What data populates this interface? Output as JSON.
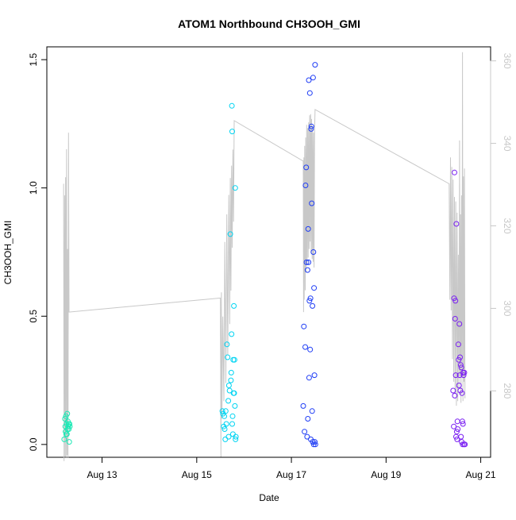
{
  "chart_data": {
    "type": "scatter",
    "title": "ATOM1 Northbound CH3OOH_GMI",
    "xlabel": "Date",
    "ylabel": "CH3OOH_GMI",
    "xlim": [
      "2016-08-11 20:00",
      "2016-08-21 05:00"
    ],
    "ylim": [
      -0.05,
      1.55
    ],
    "y2lim": [
      263.9,
      363.4
    ],
    "grid": false,
    "legend": "none",
    "x_ticks": [
      {
        "date": "2016-08-13",
        "label": "Aug 13"
      },
      {
        "date": "2016-08-15",
        "label": "Aug 15"
      },
      {
        "date": "2016-08-17",
        "label": "Aug 17"
      },
      {
        "date": "2016-08-19",
        "label": "Aug 19"
      },
      {
        "date": "2016-08-21",
        "label": "Aug 21"
      }
    ],
    "y_ticks": [
      {
        "value": 0.0,
        "label": "0.0"
      },
      {
        "value": 0.5,
        "label": "0.5"
      },
      {
        "value": 1.0,
        "label": "1.0"
      },
      {
        "value": 1.5,
        "label": "1.5"
      }
    ],
    "y2_ticks": [
      {
        "value": 280,
        "label": "280"
      },
      {
        "value": 300,
        "label": "300"
      },
      {
        "value": 320,
        "label": "320"
      },
      {
        "value": 340,
        "label": "340"
      },
      {
        "value": 360,
        "label": "360"
      }
    ],
    "colors": {
      "line": "#c8c8c8",
      "axis": "#000000",
      "y2_axis": "#c8c8c8",
      "flight1": "#1de9b6",
      "flight2": "#00d4f2",
      "flight3": "#1f3df5",
      "flight4": "#7a1ff2"
    },
    "series": [
      {
        "color": "#1de9b6",
        "points": [
          [
            "2016-08-12 04:50",
            0.02
          ],
          [
            "2016-08-12 05:10",
            0.1
          ],
          [
            "2016-08-12 05:20",
            0.07
          ],
          [
            "2016-08-12 05:30",
            0.05
          ],
          [
            "2016-08-12 05:40",
            0.11
          ],
          [
            "2016-08-12 05:50",
            0.04
          ],
          [
            "2016-08-12 06:00",
            0.08
          ],
          [
            "2016-08-12 06:10",
            0.04
          ],
          [
            "2016-08-12 06:20",
            0.12
          ],
          [
            "2016-08-12 06:30",
            0.06
          ],
          [
            "2016-08-12 06:40",
            0.09
          ],
          [
            "2016-08-12 06:50",
            0.07
          ],
          [
            "2016-08-12 07:00",
            0.08
          ],
          [
            "2016-08-12 07:10",
            0.06
          ],
          [
            "2016-08-12 07:20",
            0.01
          ],
          [
            "2016-08-12 07:30",
            0.08
          ],
          [
            "2016-08-12 07:40",
            0.07
          ]
        ]
      },
      {
        "color": "#00d4f2",
        "points": [
          [
            "2016-08-15 13:00",
            0.13
          ],
          [
            "2016-08-15 13:20",
            0.12
          ],
          [
            "2016-08-15 13:40",
            0.07
          ],
          [
            "2016-08-15 14:00",
            0.11
          ],
          [
            "2016-08-15 14:10",
            0.06
          ],
          [
            "2016-08-15 14:30",
            0.02
          ],
          [
            "2016-08-15 14:40",
            0.13
          ],
          [
            "2016-08-15 15:00",
            0.08
          ],
          [
            "2016-08-15 15:20",
            0.39
          ],
          [
            "2016-08-15 15:40",
            0.34
          ],
          [
            "2016-08-15 16:00",
            0.17
          ],
          [
            "2016-08-15 16:10",
            0.03
          ],
          [
            "2016-08-15 16:20",
            0.23
          ],
          [
            "2016-08-15 16:40",
            0.21
          ],
          [
            "2016-08-15 17:00",
            0.82
          ],
          [
            "2016-08-15 17:20",
            0.25
          ],
          [
            "2016-08-15 17:30",
            0.28
          ],
          [
            "2016-08-15 17:40",
            0.43
          ],
          [
            "2016-08-15 17:50",
            1.32
          ],
          [
            "2016-08-15 18:00",
            1.22
          ],
          [
            "2016-08-15 18:10",
            0.11
          ],
          [
            "2016-08-15 18:20",
            0.04
          ],
          [
            "2016-08-15 18:30",
            0.33
          ],
          [
            "2016-08-15 18:40",
            0.2
          ],
          [
            "2016-08-15 18:50",
            0.54
          ],
          [
            "2016-08-15 19:00",
            0.2
          ],
          [
            "2016-08-15 19:10",
            0.33
          ],
          [
            "2016-08-15 19:20",
            0.15
          ],
          [
            "2016-08-15 19:30",
            1.0
          ],
          [
            "2016-08-15 19:40",
            0.02
          ],
          [
            "2016-08-15 19:50",
            0.03
          ],
          [
            "2016-08-15 18:00",
            0.08
          ]
        ]
      },
      {
        "color": "#1f3df5",
        "points": [
          [
            "2016-08-17 06:00",
            0.15
          ],
          [
            "2016-08-17 06:20",
            0.46
          ],
          [
            "2016-08-17 06:40",
            0.05
          ],
          [
            "2016-08-17 07:00",
            0.38
          ],
          [
            "2016-08-17 07:10",
            1.01
          ],
          [
            "2016-08-17 07:30",
            1.08
          ],
          [
            "2016-08-17 07:40",
            0.71
          ],
          [
            "2016-08-17 08:00",
            0.03
          ],
          [
            "2016-08-17 08:10",
            0.68
          ],
          [
            "2016-08-17 08:20",
            0.1
          ],
          [
            "2016-08-17 08:30",
            0.84
          ],
          [
            "2016-08-17 08:40",
            0.71
          ],
          [
            "2016-08-17 08:50",
            1.42
          ],
          [
            "2016-08-17 09:00",
            0.26
          ],
          [
            "2016-08-17 09:10",
            0.56
          ],
          [
            "2016-08-17 09:20",
            1.37
          ],
          [
            "2016-08-17 09:30",
            0.37
          ],
          [
            "2016-08-17 09:40",
            0.57
          ],
          [
            "2016-08-17 09:50",
            0.02
          ],
          [
            "2016-08-17 10:00",
            1.23
          ],
          [
            "2016-08-17 10:10",
            1.24
          ],
          [
            "2016-08-17 10:20",
            0.94
          ],
          [
            "2016-08-17 10:30",
            0.13
          ],
          [
            "2016-08-17 10:40",
            0.54
          ],
          [
            "2016-08-17 10:50",
            0.01
          ],
          [
            "2016-08-17 11:00",
            1.43
          ],
          [
            "2016-08-17 11:10",
            0.75
          ],
          [
            "2016-08-17 11:20",
            0.0
          ],
          [
            "2016-08-17 11:30",
            0.61
          ],
          [
            "2016-08-17 11:40",
            0.27
          ],
          [
            "2016-08-17 11:50",
            0.01
          ],
          [
            "2016-08-17 12:00",
            1.48
          ],
          [
            "2016-08-17 12:10",
            0.0
          ]
        ]
      },
      {
        "color": "#7a1ff2",
        "points": [
          [
            "2016-08-20 10:00",
            0.21
          ],
          [
            "2016-08-20 10:20",
            0.07
          ],
          [
            "2016-08-20 10:30",
            0.57
          ],
          [
            "2016-08-20 10:40",
            1.06
          ],
          [
            "2016-08-20 10:50",
            0.19
          ],
          [
            "2016-08-20 11:00",
            0.49
          ],
          [
            "2016-08-20 11:10",
            0.56
          ],
          [
            "2016-08-20 11:20",
            0.27
          ],
          [
            "2016-08-20 11:30",
            0.03
          ],
          [
            "2016-08-20 11:40",
            0.86
          ],
          [
            "2016-08-20 11:50",
            0.05
          ],
          [
            "2016-08-20 12:00",
            0.02
          ],
          [
            "2016-08-20 12:10",
            0.09
          ],
          [
            "2016-08-20 12:20",
            0.06
          ],
          [
            "2016-08-20 12:40",
            0.39
          ],
          [
            "2016-08-20 12:50",
            0.33
          ],
          [
            "2016-08-20 13:00",
            0.23
          ],
          [
            "2016-08-20 13:10",
            0.47
          ],
          [
            "2016-08-20 13:20",
            0.27
          ],
          [
            "2016-08-20 13:30",
            0.34
          ],
          [
            "2016-08-20 13:40",
            0.21
          ],
          [
            "2016-08-20 13:50",
            0.31
          ],
          [
            "2016-08-20 14:00",
            0.03
          ],
          [
            "2016-08-20 14:10",
            0.3
          ],
          [
            "2016-08-20 14:20",
            0.01
          ],
          [
            "2016-08-20 14:30",
            0.2
          ],
          [
            "2016-08-20 14:40",
            0.09
          ],
          [
            "2016-08-20 14:50",
            0.0
          ],
          [
            "2016-08-20 15:00",
            0.08
          ],
          [
            "2016-08-20 15:10",
            0.28
          ],
          [
            "2016-08-20 15:20",
            0.27
          ],
          [
            "2016-08-20 15:30",
            0.0
          ],
          [
            "2016-08-20 15:40",
            0.28
          ],
          [
            "2016-08-20 16:00",
            0.0
          ]
        ]
      }
    ],
    "line_series": {
      "axis": "right",
      "points": [
        [
          "2016-08-12 04:30",
          330.2
        ],
        [
          "2016-08-12 04:45",
          263.0
        ],
        [
          "2016-08-12 05:00",
          327.4
        ],
        [
          "2016-08-12 05:15",
          264.0
        ],
        [
          "2016-08-12 05:30",
          331.8
        ],
        [
          "2016-08-12 05:45",
          263.7
        ],
        [
          "2016-08-12 06:00",
          338.6
        ],
        [
          "2016-08-12 06:15",
          264.4
        ],
        [
          "2016-08-12 06:30",
          314.4
        ],
        [
          "2016-08-12 06:45",
          263.7
        ],
        [
          "2016-08-12 07:00",
          342.6
        ],
        [
          "2016-08-12 07:15",
          299.1
        ],
        [
          "2016-08-15 12:00",
          302.5
        ],
        [
          "2016-08-15 12:15",
          264.0
        ],
        [
          "2016-08-15 12:30",
          303.9
        ],
        [
          "2016-08-15 12:45",
          273.3
        ],
        [
          "2016-08-15 13:15",
          298.0
        ],
        [
          "2016-08-15 13:45",
          277.5
        ],
        [
          "2016-08-15 14:15",
          316.1
        ],
        [
          "2016-08-15 14:45",
          281.9
        ],
        [
          "2016-08-15 15:15",
          322.8
        ],
        [
          "2016-08-15 15:45",
          288.8
        ],
        [
          "2016-08-15 16:15",
          327.5
        ],
        [
          "2016-08-15 16:45",
          296.2
        ],
        [
          "2016-08-15 17:00",
          331.6
        ],
        [
          "2016-08-15 17:20",
          304.3
        ],
        [
          "2016-08-15 17:40",
          334.6
        ],
        [
          "2016-08-15 18:00",
          314.7
        ],
        [
          "2016-08-15 18:20",
          338.5
        ],
        [
          "2016-08-15 18:40",
          321.0
        ],
        [
          "2016-08-15 19:00",
          345.5
        ],
        [
          "2016-08-17 06:00",
          335.7
        ],
        [
          "2016-08-17 06:10",
          299.1
        ],
        [
          "2016-08-17 06:20",
          336.6
        ],
        [
          "2016-08-17 06:30",
          302.1
        ],
        [
          "2016-08-17 06:45",
          339.4
        ],
        [
          "2016-08-17 07:00",
          304.4
        ],
        [
          "2016-08-17 07:15",
          341.4
        ],
        [
          "2016-08-17 07:30",
          308.7
        ],
        [
          "2016-08-17 07:45",
          344.5
        ],
        [
          "2016-08-17 08:00",
          310.5
        ],
        [
          "2016-08-17 08:15",
          343.7
        ],
        [
          "2016-08-17 08:30",
          312.3
        ],
        [
          "2016-08-17 08:45",
          345.1
        ],
        [
          "2016-08-17 09:00",
          314.4
        ],
        [
          "2016-08-17 09:15",
          346.8
        ],
        [
          "2016-08-17 09:30",
          316.2
        ],
        [
          "2016-08-17 09:45",
          347.1
        ],
        [
          "2016-08-17 10:00",
          313.8
        ],
        [
          "2016-08-17 10:15",
          345.9
        ],
        [
          "2016-08-17 10:30",
          312.0
        ],
        [
          "2016-08-17 10:45",
          344.2
        ],
        [
          "2016-08-17 11:00",
          311.3
        ],
        [
          "2016-08-17 11:15",
          342.6
        ],
        [
          "2016-08-17 11:30",
          309.9
        ],
        [
          "2016-08-17 11:45",
          343.4
        ],
        [
          "2016-08-17 12:00",
          348.2
        ],
        [
          "2016-08-20 08:00",
          330.2
        ],
        [
          "2016-08-20 08:20",
          302.1
        ],
        [
          "2016-08-20 08:40",
          336.6
        ],
        [
          "2016-08-20 09:00",
          299.5
        ],
        [
          "2016-08-20 09:20",
          334.3
        ],
        [
          "2016-08-20 09:40",
          287.7
        ],
        [
          "2016-08-20 10:00",
          331.2
        ],
        [
          "2016-08-20 10:20",
          282.2
        ],
        [
          "2016-08-20 10:40",
          327.0
        ],
        [
          "2016-08-20 11:00",
          279.4
        ],
        [
          "2016-08-20 11:20",
          325.9
        ],
        [
          "2016-08-20 11:40",
          276.4
        ],
        [
          "2016-08-20 12:00",
          323.2
        ],
        [
          "2016-08-20 12:20",
          277.5
        ],
        [
          "2016-08-20 12:40",
          313.0
        ],
        [
          "2016-08-20 13:00",
          280.9
        ],
        [
          "2016-08-20 13:15",
          340.7
        ],
        [
          "2016-08-20 13:30",
          283.5
        ],
        [
          "2016-08-20 13:45",
          322.8
        ],
        [
          "2016-08-20 14:00",
          277.1
        ],
        [
          "2016-08-20 14:15",
          327.4
        ],
        [
          "2016-08-20 14:30",
          284.9
        ],
        [
          "2016-08-20 14:45",
          362.1
        ],
        [
          "2016-08-20 15:00",
          277.5
        ],
        [
          "2016-08-20 15:15",
          332.0
        ],
        [
          "2016-08-20 15:30",
          282.2
        ],
        [
          "2016-08-20 15:45",
          333.9
        ],
        [
          "2016-08-20 16:00",
          278.2
        ]
      ]
    }
  }
}
